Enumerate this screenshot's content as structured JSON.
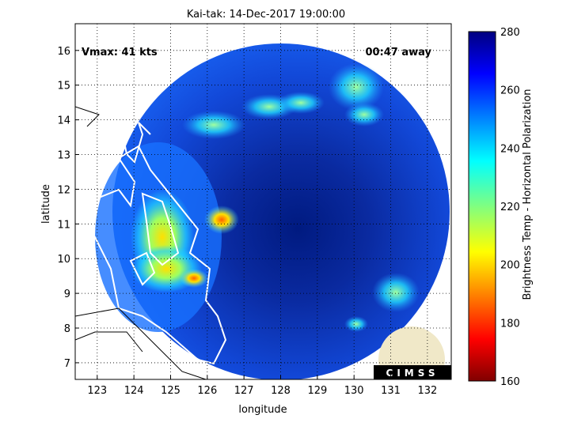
{
  "chart_data": {
    "type": "image",
    "title": "Kai-tak: 14-Dec-2017 19:00:00",
    "x_label": "longitude",
    "y_label": "latitude",
    "annotations": [
      "Vmax: 41 kts",
      "00:47 away"
    ],
    "xlim": [
      122.4,
      132.65
    ],
    "xticks": [
      123,
      124,
      125,
      126,
      127,
      128,
      129,
      130,
      131,
      132
    ],
    "ylim": [
      6.52,
      16.77
    ],
    "yticks": [
      7,
      8,
      9,
      10,
      11,
      12,
      13,
      14,
      15,
      16
    ],
    "grid": true,
    "colorbar": {
      "label": "Brightness Temp - Horizontal Polarization",
      "lim": [
        160,
        280
      ],
      "ticks": [
        160,
        180,
        200,
        220,
        240,
        260,
        280
      ]
    },
    "logo": "CIMSS"
  }
}
